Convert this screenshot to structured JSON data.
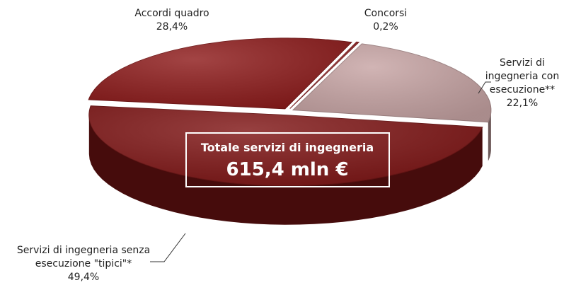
{
  "chart_data": {
    "type": "pie",
    "categories": [
      "Accordi quadro",
      "Concorsi",
      "Servizi di ingegneria con esecuzione**",
      "Servizi di ingegneria senza esecuzione \"tipici\"*"
    ],
    "values": [
      28.4,
      0.2,
      22.1,
      49.4
    ],
    "value_labels": [
      "28,4%",
      "0,2%",
      "22,1%",
      "49,4%"
    ],
    "colors": [
      "#8e1b1b",
      "#9a2a2a",
      "#c7a4a4",
      "#801616"
    ],
    "total_label": "Totale servizi di ingegneria",
    "total_value": "615,4 mln €"
  }
}
